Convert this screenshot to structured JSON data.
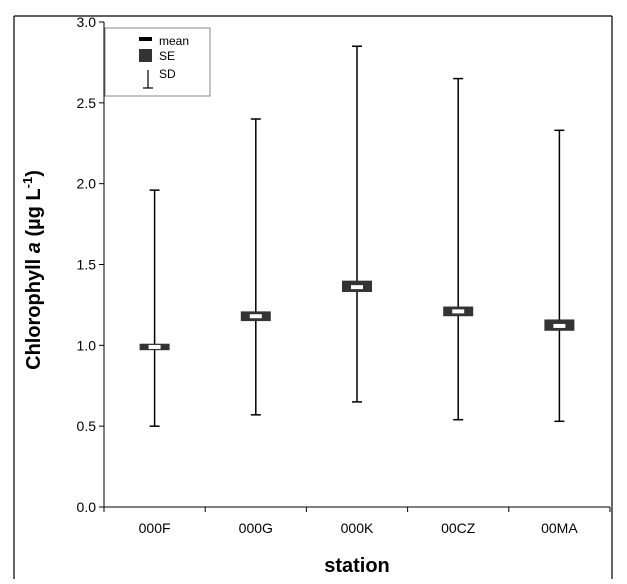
{
  "chart_data": {
    "type": "box",
    "categories": [
      "000F",
      "000G",
      "000K",
      "00CZ",
      "00MA"
    ],
    "series": [
      {
        "mean": [
          0.99,
          1.18,
          1.36,
          1.21,
          1.12
        ],
        "se_low": [
          0.97,
          1.15,
          1.33,
          1.18,
          1.09
        ],
        "se_high": [
          1.01,
          1.21,
          1.4,
          1.24,
          1.16
        ],
        "sd_low": [
          0.5,
          0.57,
          0.65,
          0.54,
          0.53
        ],
        "sd_high": [
          1.96,
          2.4,
          2.85,
          2.65,
          2.33
        ]
      }
    ],
    "xlabel": "station",
    "ylabel": "Chlorophyll a  (µg L-1)",
    "ylabel_parts": {
      "main": "Chlorophyll ",
      "italic": "a",
      "units": "  (µg L",
      "sup": "-1",
      "close": ")"
    },
    "ylim": [
      0.0,
      3.0
    ],
    "yticks": [
      "0.0",
      "0.5",
      "1.0",
      "1.5",
      "2.0",
      "2.5",
      "3.0"
    ],
    "grid": false,
    "legend": {
      "position": "top-left",
      "entries": [
        "mean",
        "SE",
        "SD"
      ]
    },
    "colors": {
      "box": "#333333",
      "mean_marker": "#ffffff",
      "whisker": "#000000",
      "axis": "#000000"
    }
  }
}
